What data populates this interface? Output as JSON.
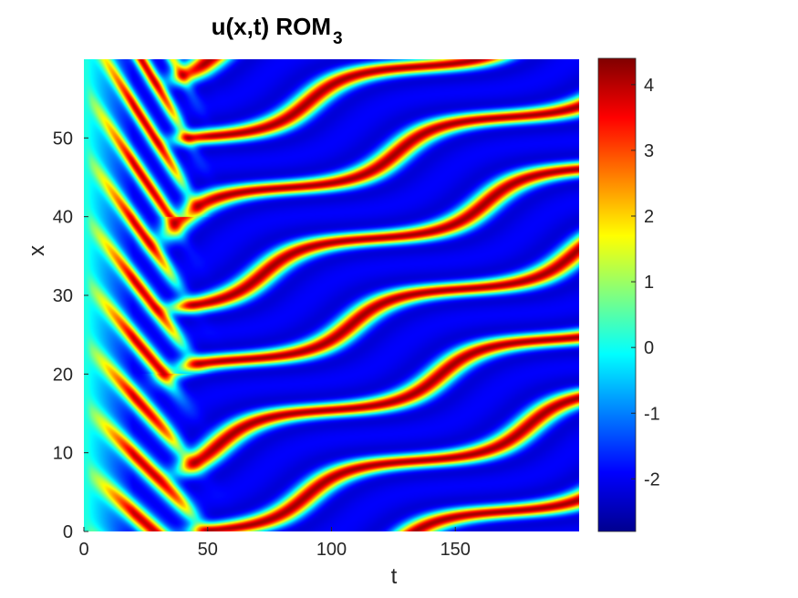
{
  "chart_data": {
    "type": "heatmap",
    "title": "u(x,t) ROM",
    "title_subscript": "3",
    "xlabel": "t",
    "ylabel": "x",
    "xlim": [
      0,
      200
    ],
    "ylim": [
      0,
      60
    ],
    "x_ticks": [
      0,
      50,
      100,
      150
    ],
    "y_ticks": [
      0,
      10,
      20,
      30,
      40,
      50
    ],
    "x_tick_labels": [
      "0",
      "50",
      "100",
      "150"
    ],
    "y_tick_labels": [
      "0",
      "10",
      "20",
      "30",
      "40",
      "50"
    ],
    "colorbar": {
      "range": [
        -2.8,
        4.4
      ],
      "ticks": [
        -2,
        -1,
        0,
        1,
        2,
        3,
        4
      ],
      "tick_labels": [
        "-2",
        "-1",
        "0",
        "1",
        "2",
        "3",
        "4"
      ],
      "colormap": "jet"
    },
    "field_description": {
      "background_value": -1.9,
      "peak_value": 4.2,
      "transient_end_t": 45,
      "late_time_wave_speed_x_per_t": 0.1,
      "stripe_spacing_x": 10,
      "early_cells_spacing_x": 8
    },
    "grid": false,
    "legend": "none"
  }
}
